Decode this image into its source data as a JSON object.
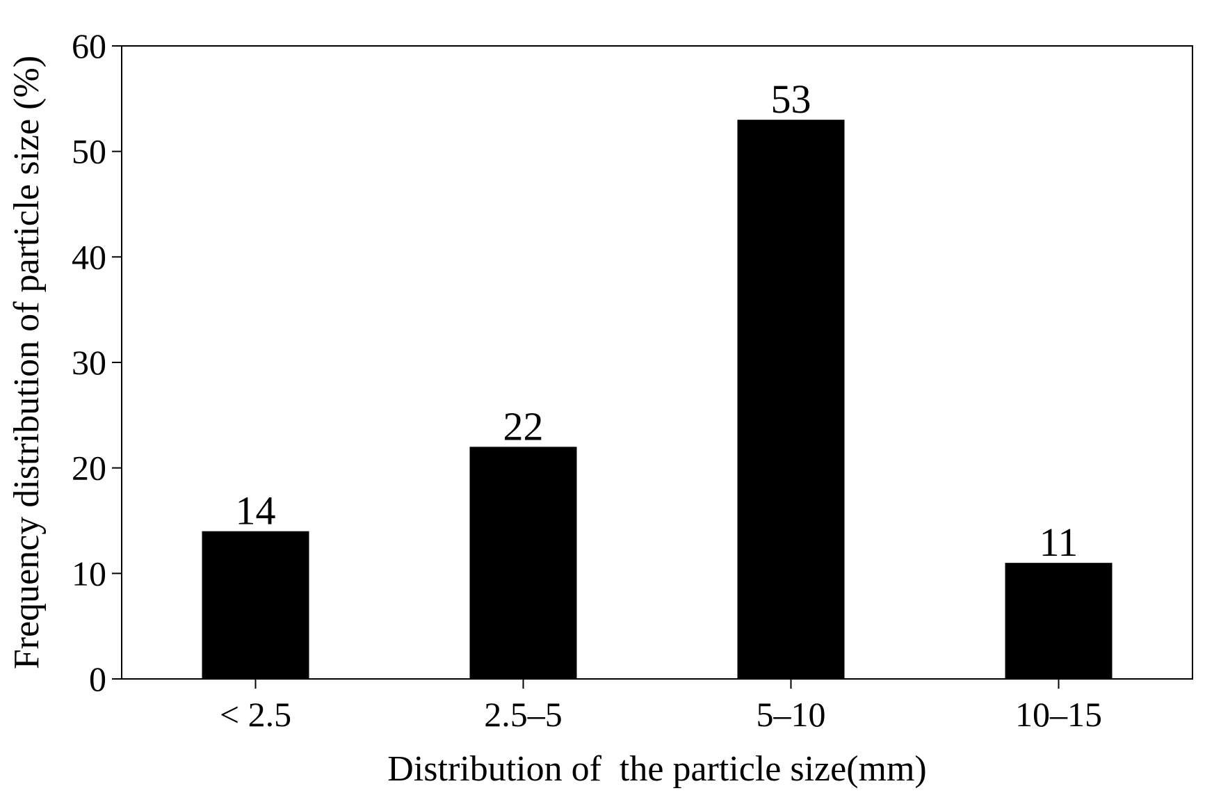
{
  "chart_data": {
    "type": "bar",
    "categories": [
      "< 2.5",
      "2.5–5",
      "5–10",
      "10–15"
    ],
    "values": [
      14,
      22,
      53,
      11
    ],
    "data_labels": [
      "14",
      "22",
      "53",
      "11"
    ],
    "xlabel": "Distribution of  the particle size(mm)",
    "ylabel": "Frequency distribution of particle size (%)",
    "ylim": [
      0,
      60
    ],
    "yticks": [
      0,
      10,
      20,
      30,
      40,
      50,
      60
    ],
    "ytick_labels": [
      "0",
      "10",
      "20",
      "30",
      "40",
      "50",
      "60"
    ],
    "grid": false,
    "legend": "none",
    "colors": {
      "bar": "#000000",
      "axis": "#000000",
      "background": "#ffffff"
    }
  }
}
